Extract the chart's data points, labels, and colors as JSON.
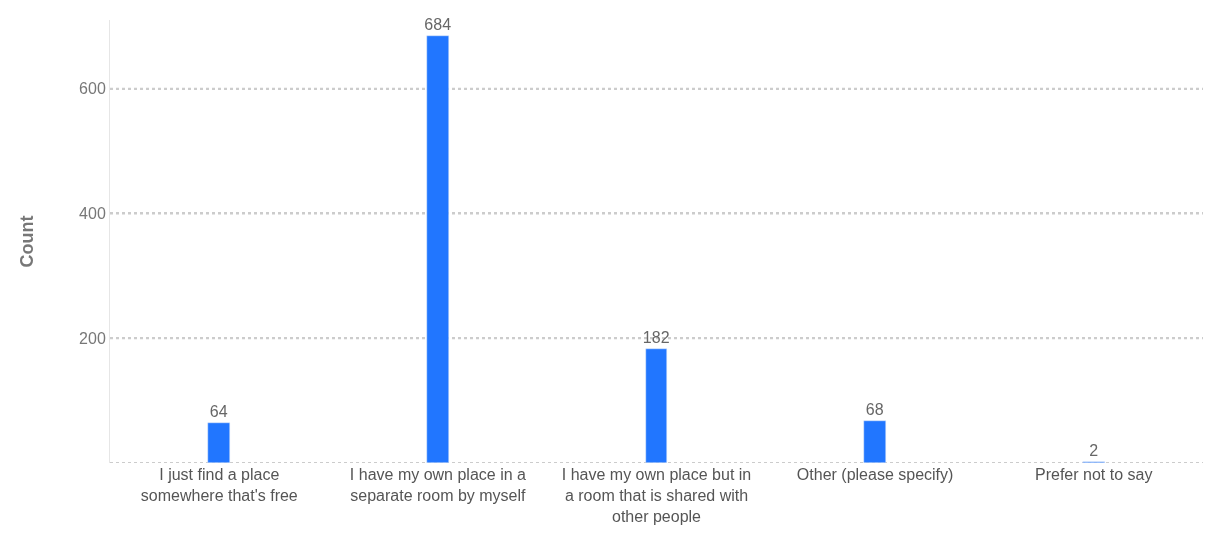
{
  "chart_data": {
    "type": "bar",
    "ylabel": "Count",
    "categories": [
      "I just find a place somewhere that's free",
      "I have my own place in a separate room by myself",
      "I have my own place but in a room that is shared with other people",
      "Other (please specify)",
      "Prefer not to say"
    ],
    "values": [
      64,
      684,
      182,
      68,
      2
    ],
    "color": "#2176ff",
    "ylim": [
      0,
      710
    ],
    "yticks": [
      {
        "value": 0,
        "label": null
      },
      200,
      400,
      600
    ],
    "grid": "y",
    "data_labels": true
  }
}
